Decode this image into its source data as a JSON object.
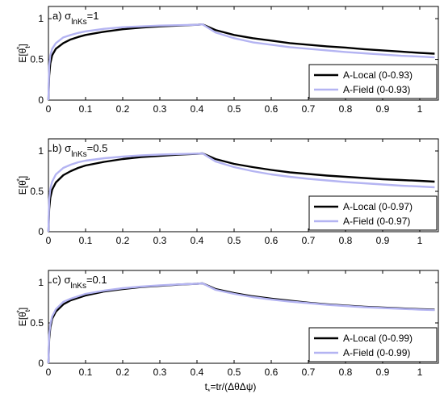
{
  "chart_data": [
    {
      "type": "line",
      "panel_label": "a)",
      "sigma_sub": "lnKs",
      "sigma_value": "=1",
      "ylabel": "E[θ",
      "ylabel_sub": "t",
      "ylabel_tail": "]",
      "xlim": [
        0,
        1.05
      ],
      "ylim": [
        0,
        1.15
      ],
      "xticks": [
        "0",
        "0.1",
        "0.2",
        "0.3",
        "0.4",
        "0.5",
        "0.6",
        "0.7",
        "0.8",
        "0.9",
        "1"
      ],
      "yticks": [
        "0",
        "0.5",
        "1"
      ],
      "legend_position": "bottom-right",
      "series": [
        {
          "name": "A-Local (0-0.93)",
          "color": "#000000",
          "x": [
            0.0,
            0.002,
            0.005,
            0.01,
            0.02,
            0.04,
            0.06,
            0.08,
            0.1,
            0.15,
            0.2,
            0.25,
            0.3,
            0.35,
            0.4,
            0.415,
            0.45,
            0.5,
            0.55,
            0.6,
            0.65,
            0.7,
            0.75,
            0.8,
            0.85,
            0.9,
            0.95,
            1.0,
            1.04
          ],
          "y": [
            0.0,
            0.3,
            0.45,
            0.55,
            0.63,
            0.7,
            0.745,
            0.775,
            0.8,
            0.84,
            0.87,
            0.89,
            0.905,
            0.915,
            0.925,
            0.93,
            0.86,
            0.8,
            0.76,
            0.73,
            0.7,
            0.68,
            0.66,
            0.645,
            0.625,
            0.61,
            0.595,
            0.58,
            0.57
          ]
        },
        {
          "name": "A-Field (0-0.93)",
          "color": "#b4b4f2",
          "x": [
            0.0,
            0.002,
            0.005,
            0.01,
            0.02,
            0.04,
            0.06,
            0.08,
            0.1,
            0.15,
            0.2,
            0.25,
            0.3,
            0.35,
            0.4,
            0.415,
            0.45,
            0.5,
            0.55,
            0.6,
            0.65,
            0.7,
            0.75,
            0.8,
            0.85,
            0.9,
            0.95,
            1.0,
            1.04
          ],
          "y": [
            0.0,
            0.42,
            0.55,
            0.63,
            0.7,
            0.77,
            0.8,
            0.825,
            0.845,
            0.875,
            0.895,
            0.905,
            0.915,
            0.92,
            0.925,
            0.93,
            0.83,
            0.76,
            0.71,
            0.68,
            0.65,
            0.63,
            0.61,
            0.59,
            0.575,
            0.56,
            0.545,
            0.535,
            0.525
          ]
        }
      ]
    },
    {
      "type": "line",
      "panel_label": "b)",
      "sigma_sub": "lnKs",
      "sigma_value": "=0.5",
      "ylabel": "E[θ",
      "ylabel_sub": "t",
      "ylabel_tail": "]",
      "xlim": [
        0,
        1.05
      ],
      "ylim": [
        0,
        1.15
      ],
      "xticks": [
        "0",
        "0.1",
        "0.2",
        "0.3",
        "0.4",
        "0.5",
        "0.6",
        "0.7",
        "0.8",
        "0.9",
        "1"
      ],
      "yticks": [
        "0",
        "0.5",
        "1"
      ],
      "legend_position": "bottom-right",
      "series": [
        {
          "name": "A-Local (0-0.97)",
          "color": "#000000",
          "x": [
            0.0,
            0.002,
            0.005,
            0.01,
            0.02,
            0.04,
            0.06,
            0.08,
            0.1,
            0.15,
            0.2,
            0.25,
            0.3,
            0.35,
            0.4,
            0.415,
            0.45,
            0.5,
            0.55,
            0.6,
            0.65,
            0.7,
            0.75,
            0.8,
            0.85,
            0.9,
            0.95,
            1.0,
            1.04
          ],
          "y": [
            0.0,
            0.28,
            0.42,
            0.52,
            0.61,
            0.7,
            0.75,
            0.79,
            0.82,
            0.865,
            0.9,
            0.925,
            0.94,
            0.955,
            0.965,
            0.97,
            0.9,
            0.84,
            0.8,
            0.765,
            0.735,
            0.715,
            0.695,
            0.68,
            0.665,
            0.65,
            0.64,
            0.63,
            0.62
          ]
        },
        {
          "name": "A-Field (0-0.97)",
          "color": "#b4b4f2",
          "x": [
            0.0,
            0.002,
            0.005,
            0.01,
            0.02,
            0.04,
            0.06,
            0.08,
            0.1,
            0.15,
            0.2,
            0.25,
            0.3,
            0.35,
            0.4,
            0.415,
            0.45,
            0.5,
            0.55,
            0.6,
            0.65,
            0.7,
            0.75,
            0.8,
            0.85,
            0.9,
            0.95,
            1.0,
            1.04
          ],
          "y": [
            0.0,
            0.4,
            0.53,
            0.62,
            0.71,
            0.79,
            0.83,
            0.86,
            0.88,
            0.91,
            0.93,
            0.945,
            0.955,
            0.962,
            0.967,
            0.97,
            0.87,
            0.8,
            0.75,
            0.71,
            0.68,
            0.655,
            0.635,
            0.615,
            0.6,
            0.585,
            0.57,
            0.56,
            0.55
          ]
        }
      ]
    },
    {
      "type": "line",
      "panel_label": "c)",
      "sigma_sub": "lnKs",
      "sigma_value": "=0.1",
      "ylabel": "E[θ",
      "ylabel_sub": "t",
      "ylabel_tail": "]",
      "xlabel": "t",
      "xlabel_sub": "*",
      "xlabel_tail": "=tr/(ΔθΔψ)",
      "xlim": [
        0,
        1.05
      ],
      "ylim": [
        0,
        1.15
      ],
      "xticks": [
        "0",
        "0.1",
        "0.2",
        "0.3",
        "0.4",
        "0.5",
        "0.6",
        "0.7",
        "0.8",
        "0.9",
        "1"
      ],
      "yticks": [
        "0",
        "0.5",
        "1"
      ],
      "legend_position": "bottom-right",
      "series": [
        {
          "name": "A-Local (0-0.99)",
          "color": "#000000",
          "x": [
            0.0,
            0.002,
            0.005,
            0.01,
            0.02,
            0.04,
            0.06,
            0.08,
            0.1,
            0.15,
            0.2,
            0.25,
            0.3,
            0.35,
            0.4,
            0.415,
            0.45,
            0.5,
            0.55,
            0.6,
            0.65,
            0.7,
            0.75,
            0.8,
            0.85,
            0.9,
            0.95,
            1.0,
            1.04
          ],
          "y": [
            0.0,
            0.3,
            0.44,
            0.55,
            0.64,
            0.73,
            0.78,
            0.81,
            0.84,
            0.89,
            0.92,
            0.945,
            0.96,
            0.975,
            0.985,
            0.99,
            0.92,
            0.87,
            0.83,
            0.8,
            0.775,
            0.75,
            0.73,
            0.715,
            0.7,
            0.69,
            0.68,
            0.67,
            0.665
          ]
        },
        {
          "name": "A-Field (0-0.99)",
          "color": "#b4b4f2",
          "x": [
            0.0,
            0.002,
            0.005,
            0.01,
            0.02,
            0.04,
            0.06,
            0.08,
            0.1,
            0.15,
            0.2,
            0.25,
            0.3,
            0.35,
            0.4,
            0.415,
            0.45,
            0.5,
            0.55,
            0.6,
            0.65,
            0.7,
            0.75,
            0.8,
            0.85,
            0.9,
            0.95,
            1.0,
            1.04
          ],
          "y": [
            0.0,
            0.35,
            0.48,
            0.58,
            0.67,
            0.76,
            0.8,
            0.83,
            0.86,
            0.9,
            0.93,
            0.95,
            0.965,
            0.977,
            0.985,
            0.99,
            0.91,
            0.86,
            0.82,
            0.79,
            0.765,
            0.745,
            0.725,
            0.71,
            0.695,
            0.685,
            0.675,
            0.665,
            0.66
          ]
        }
      ]
    }
  ]
}
